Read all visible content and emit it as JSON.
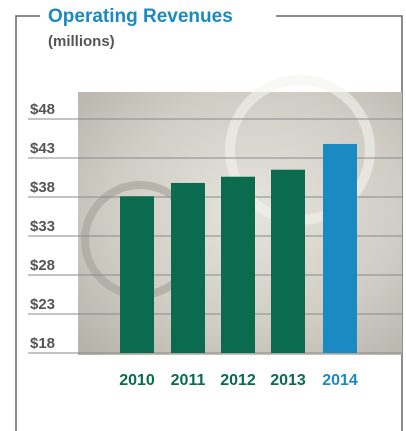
{
  "chart_data": {
    "type": "bar",
    "title": "Operating Revenues",
    "subtitle": "(millions)",
    "categories": [
      "2010",
      "2011",
      "2012",
      "2013",
      "2014"
    ],
    "values": [
      38.1,
      39.8,
      40.6,
      41.5,
      44.8
    ],
    "colors": [
      "#0b6b4e",
      "#0b6b4e",
      "#0b6b4e",
      "#0b6b4e",
      "#1b8ac2"
    ],
    "ylim": [
      18,
      48
    ],
    "yticks": [
      {
        "value": 18,
        "label": "$18"
      },
      {
        "value": 23,
        "label": "$23"
      },
      {
        "value": 28,
        "label": "$28"
      },
      {
        "value": 33,
        "label": "$33"
      },
      {
        "value": 38,
        "label": "$38"
      },
      {
        "value": 43,
        "label": "$43"
      },
      {
        "value": 48,
        "label": "$48"
      }
    ],
    "grid": true
  }
}
